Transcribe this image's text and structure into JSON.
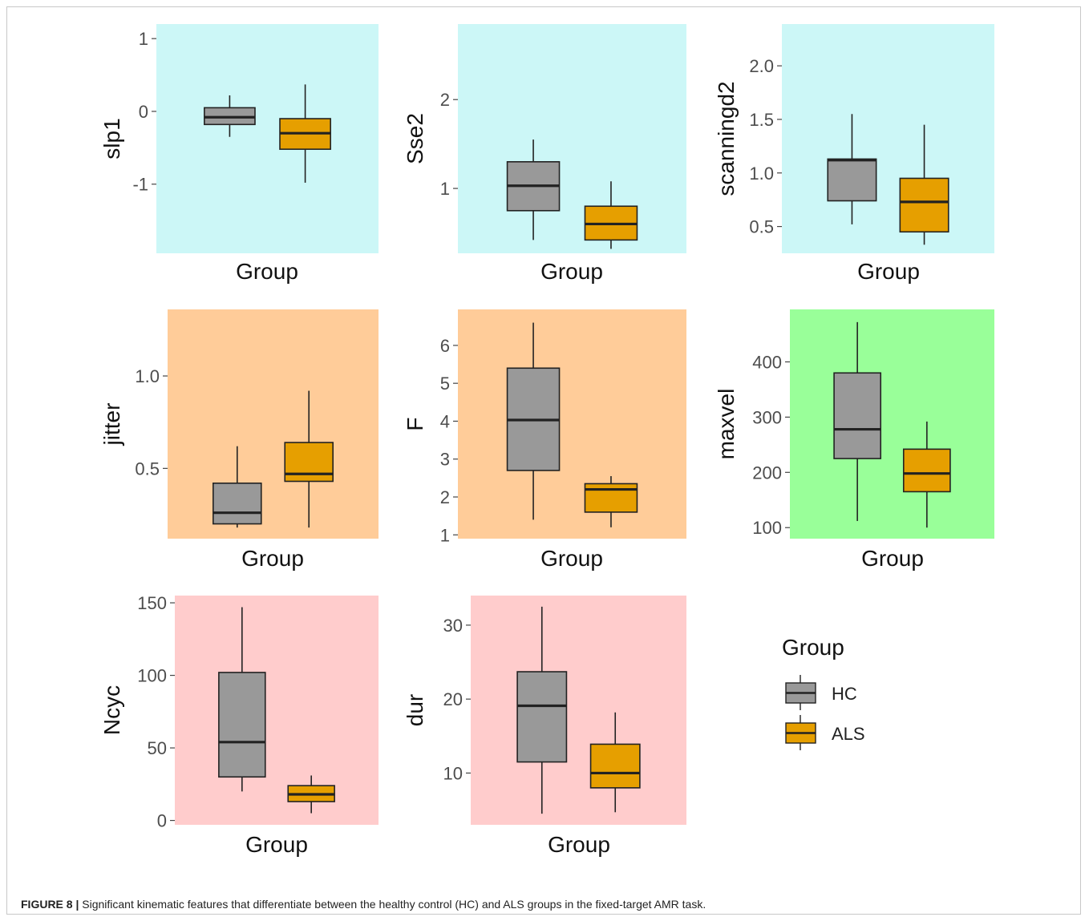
{
  "caption": {
    "label": "FIGURE 8 |",
    "text": "Significant kinematic features that differentiate between the healthy control (HC) and ALS groups in the fixed-target AMR task."
  },
  "legend": {
    "title": "Group",
    "items": [
      {
        "label": "HC",
        "color": "#999999"
      },
      {
        "label": "ALS",
        "color": "#E69F00"
      }
    ]
  },
  "chart_data": [
    {
      "type": "box",
      "ylabel": "slp1",
      "xlabel": "Group",
      "background": "#CCF7F7",
      "yticks": [
        -1,
        0,
        1
      ],
      "ylim": [
        -1.95,
        1.2
      ],
      "series": [
        {
          "name": "HC",
          "whisker_low": -0.35,
          "q1": -0.18,
          "median": -0.08,
          "q3": 0.05,
          "whisker_high": 0.22
        },
        {
          "name": "ALS",
          "whisker_low": -0.98,
          "q1": -0.52,
          "median": -0.3,
          "q3": -0.1,
          "whisker_high": 0.37
        }
      ]
    },
    {
      "type": "box",
      "ylabel": "Sse2",
      "xlabel": "Group",
      "background": "#CCF7F7",
      "yticks": [
        1,
        2
      ],
      "ylim": [
        0.27,
        2.85
      ],
      "series": [
        {
          "name": "HC",
          "whisker_low": 0.42,
          "q1": 0.75,
          "median": 1.03,
          "q3": 1.3,
          "whisker_high": 1.55
        },
        {
          "name": "ALS",
          "whisker_low": 0.32,
          "q1": 0.42,
          "median": 0.6,
          "q3": 0.8,
          "whisker_high": 1.08
        }
      ]
    },
    {
      "type": "box",
      "ylabel": "scanningd2",
      "xlabel": "Group",
      "background": "#CCF7F7",
      "yticks": [
        0.5,
        1.0,
        1.5,
        2.0
      ],
      "ylim": [
        0.25,
        2.39
      ],
      "tick_labels": [
        "0.5",
        "1.0",
        "1.5",
        "2.0"
      ],
      "series": [
        {
          "name": "HC",
          "whisker_low": 0.52,
          "q1": 0.74,
          "median": 1.12,
          "q3": 1.13,
          "whisker_high": 1.55
        },
        {
          "name": "ALS",
          "whisker_low": 0.33,
          "q1": 0.45,
          "median": 0.73,
          "q3": 0.95,
          "whisker_high": 1.45
        }
      ]
    },
    {
      "type": "box",
      "ylabel": "jitter",
      "xlabel": "Group",
      "background": "#FFCC99",
      "yticks": [
        0.5,
        1.0
      ],
      "ylim": [
        0.12,
        1.36
      ],
      "tick_labels": [
        "0.5",
        "1.0"
      ],
      "series": [
        {
          "name": "HC",
          "whisker_low": 0.18,
          "q1": 0.2,
          "median": 0.26,
          "q3": 0.42,
          "whisker_high": 0.62
        },
        {
          "name": "ALS",
          "whisker_low": 0.18,
          "q1": 0.43,
          "median": 0.47,
          "q3": 0.64,
          "whisker_high": 0.92
        }
      ]
    },
    {
      "type": "box",
      "ylabel": "F",
      "xlabel": "Group",
      "background": "#FFCC99",
      "yticks": [
        1,
        2,
        3,
        4,
        5,
        6
      ],
      "ylim": [
        0.9,
        6.95
      ],
      "series": [
        {
          "name": "HC",
          "whisker_low": 1.4,
          "q1": 2.7,
          "median": 4.03,
          "q3": 5.4,
          "whisker_high": 6.6
        },
        {
          "name": "ALS",
          "whisker_low": 1.2,
          "q1": 1.6,
          "median": 2.2,
          "q3": 2.35,
          "whisker_high": 2.55
        }
      ]
    },
    {
      "type": "box",
      "ylabel": "maxvel",
      "xlabel": "Group",
      "background": "#99FF99",
      "yticks": [
        100,
        200,
        300,
        400
      ],
      "ylim": [
        80,
        495
      ],
      "series": [
        {
          "name": "HC",
          "whisker_low": 112,
          "q1": 225,
          "median": 278,
          "q3": 380,
          "whisker_high": 472
        },
        {
          "name": "ALS",
          "whisker_low": 100,
          "q1": 165,
          "median": 198,
          "q3": 242,
          "whisker_high": 292
        }
      ]
    },
    {
      "type": "box",
      "ylabel": "Ncyc",
      "xlabel": "Group",
      "background": "#FFCCCC",
      "yticks": [
        0,
        50,
        100,
        150
      ],
      "ylim": [
        -3,
        155
      ],
      "series": [
        {
          "name": "HC",
          "whisker_low": 20,
          "q1": 30,
          "median": 54,
          "q3": 102,
          "whisker_high": 147
        },
        {
          "name": "ALS",
          "whisker_low": 5,
          "q1": 13,
          "median": 18,
          "q3": 24,
          "whisker_high": 31
        }
      ]
    },
    {
      "type": "box",
      "ylabel": "dur",
      "xlabel": "Group",
      "background": "#FFCCCC",
      "yticks": [
        10,
        20,
        30
      ],
      "ylim": [
        3,
        34
      ],
      "series": [
        {
          "name": "HC",
          "whisker_low": 4.5,
          "q1": 11.5,
          "median": 19.1,
          "q3": 23.7,
          "whisker_high": 32.5
        },
        {
          "name": "ALS",
          "whisker_low": 4.7,
          "q1": 8,
          "median": 10,
          "q3": 13.9,
          "whisker_high": 18.2
        }
      ]
    }
  ]
}
